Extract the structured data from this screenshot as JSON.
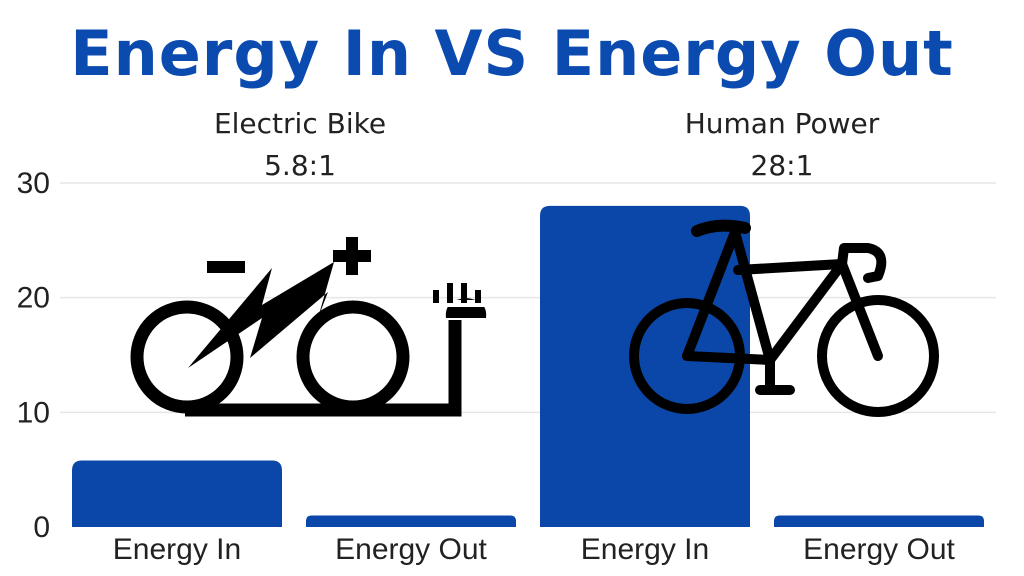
{
  "chart_data": {
    "type": "bar",
    "title": "Energy In VS Energy Out",
    "groups": [
      {
        "name": "Electric Bike",
        "ratio": "5.8:1",
        "icon": "electric-bike-icon"
      },
      {
        "name": "Human Power",
        "ratio": "28:1",
        "icon": "bicycle-icon"
      }
    ],
    "categories": [
      "Energy In",
      "Energy Out",
      "Energy In",
      "Energy Out"
    ],
    "values": [
      5.8,
      1,
      28,
      1
    ],
    "yticks": [
      "0",
      "10",
      "20",
      "30"
    ],
    "ylim": [
      0,
      30
    ],
    "grid": true,
    "colors": {
      "bar": "#0b47a8",
      "title": "#0b4bb0",
      "grid": "#e6e6e6",
      "icon": "#000000"
    }
  }
}
